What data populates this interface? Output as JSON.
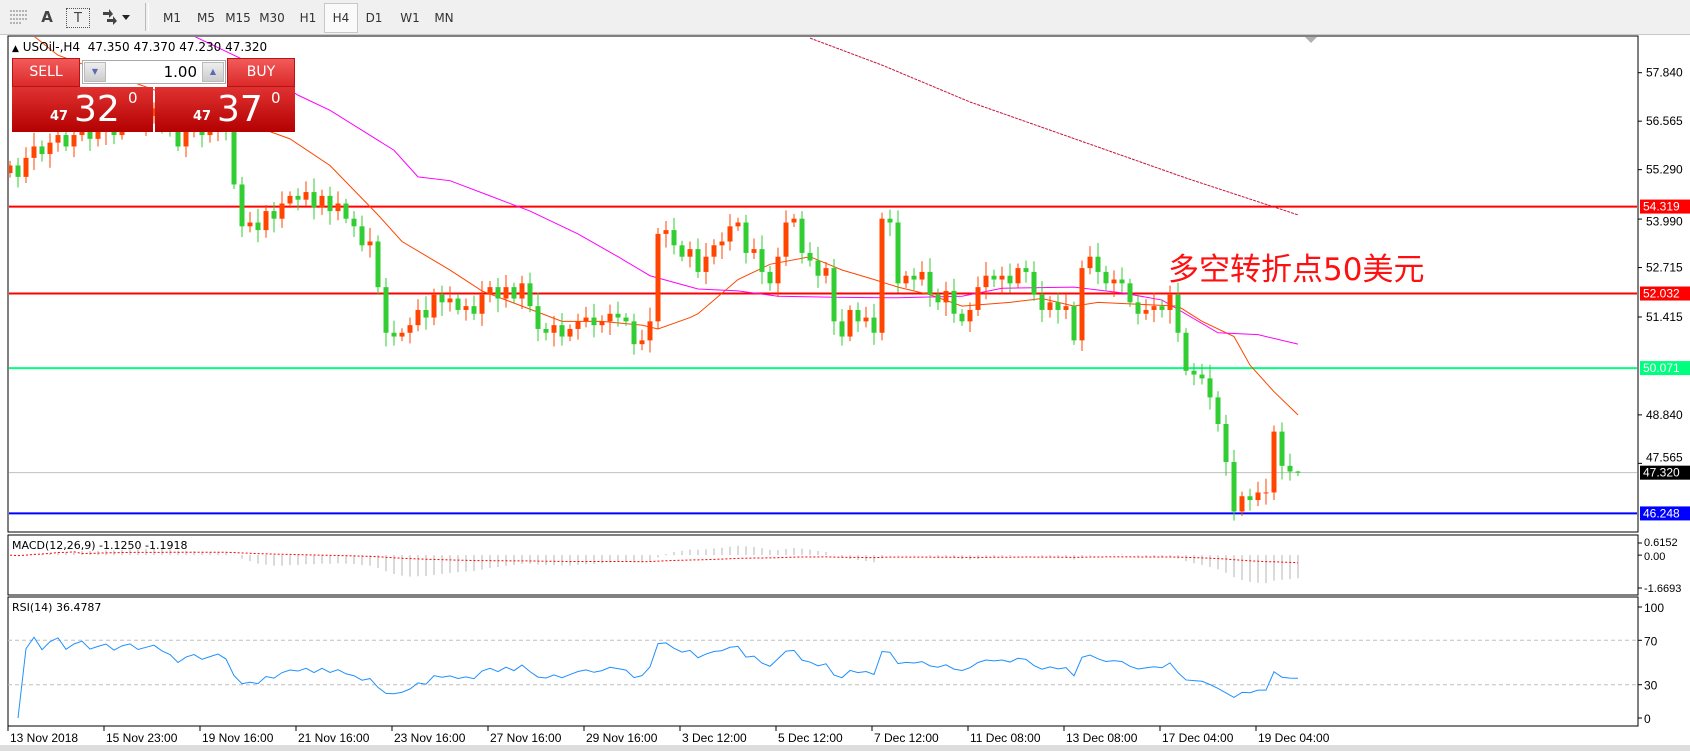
{
  "toolbar": {
    "icons": [
      "grid-lines-icon",
      "text-label-icon",
      "text-box-icon",
      "arrows-icon"
    ],
    "text_icon_glyph": "A",
    "textbox_icon_glyph": "T",
    "timeframes": [
      "M1",
      "M5",
      "M15",
      "M30",
      "H1",
      "H4",
      "D1",
      "W1",
      "MN"
    ],
    "active_timeframe": "H4"
  },
  "chart": {
    "symbol_line": "USOil-,H4  47.350 47.370 47.230 47.320",
    "trade_panel": {
      "sell_label": "SELL",
      "buy_label": "BUY",
      "lot_value": "1.00",
      "sell_price_small": "47",
      "sell_price_big": "32",
      "sell_price_sup": "0",
      "buy_price_small": "47",
      "buy_price_big": "37",
      "buy_price_sup": "0"
    },
    "annotation": "多空转折点50美元",
    "colors": {
      "bull": "#ff4500",
      "bear": "#32cd32",
      "ma_fast": "#ff4500",
      "ma_mid": "#ff00ff",
      "ma_slow": "#c8143c",
      "resistance": "#ff0000",
      "pivot": "#00ff7f",
      "support": "#0000ff",
      "bid": "#c0c0c0"
    }
  },
  "chart_data": [
    {
      "type": "candlestick",
      "title": "USOil-,H4",
      "yticks": [
        "57.840",
        "56.565",
        "55.290",
        "53.990",
        "52.715",
        "51.415",
        "48.840",
        "47.565"
      ],
      "xticks": [
        "13 Nov 2018",
        "15 Nov 23:00",
        "19 Nov 16:00",
        "21 Nov 16:00",
        "23 Nov 16:00",
        "27 Nov 16:00",
        "29 Nov 16:00",
        "3 Dec 12:00",
        "5 Dec 12:00",
        "7 Dec 12:00",
        "11 Dec 08:00",
        "13 Dec 08:00",
        "17 Dec 04:00",
        "19 Dec 04:00"
      ],
      "xtick_every_bars": 12,
      "close": [
        55.4,
        55.1,
        55.6,
        55.9,
        55.7,
        56.0,
        56.2,
        55.9,
        56.2,
        56.4,
        56.1,
        56.3,
        56.5,
        56.2,
        56.6,
        56.8,
        56.5,
        56.7,
        56.9,
        56.6,
        56.4,
        55.9,
        56.3,
        56.5,
        56.2,
        56.4,
        56.6,
        56.3,
        54.9,
        53.8,
        53.9,
        53.7,
        54.2,
        54.0,
        54.4,
        54.6,
        54.5,
        54.7,
        54.3,
        54.6,
        54.2,
        54.4,
        54.0,
        53.8,
        53.3,
        53.4,
        52.2,
        51.0,
        50.9,
        51.0,
        51.2,
        51.6,
        51.4,
        52.0,
        51.8,
        51.9,
        51.6,
        51.7,
        51.5,
        52.0,
        52.2,
        51.9,
        52.2,
        51.9,
        52.3,
        51.7,
        51.1,
        51.0,
        51.2,
        50.9,
        51.1,
        51.3,
        51.4,
        51.2,
        51.3,
        51.5,
        51.4,
        51.3,
        50.7,
        50.8,
        51.3,
        53.6,
        53.7,
        53.3,
        53.0,
        53.2,
        52.6,
        53.0,
        53.3,
        53.4,
        53.8,
        53.9,
        53.1,
        53.2,
        52.6,
        52.3,
        53.0,
        53.9,
        54.0,
        53.1,
        52.9,
        52.5,
        52.7,
        51.3,
        50.9,
        51.6,
        51.3,
        51.4,
        51.0,
        54.0,
        53.9,
        52.3,
        52.5,
        52.4,
        52.6,
        52.0,
        51.8,
        52.1,
        51.5,
        51.3,
        51.6,
        52.2,
        52.5,
        52.4,
        52.5,
        52.3,
        52.7,
        52.6,
        52.0,
        51.6,
        51.8,
        51.6,
        51.7,
        50.8,
        52.7,
        53.0,
        52.6,
        52.3,
        52.4,
        52.3,
        51.8,
        51.5,
        51.6,
        51.7,
        51.6,
        52.0,
        51.0,
        50.0,
        49.9,
        49.8,
        49.3,
        48.6,
        47.6,
        46.3,
        46.7,
        46.6,
        46.8,
        46.8,
        48.4,
        47.5,
        47.35,
        47.32
      ],
      "last": {
        "open": 47.35,
        "high": 47.37,
        "low": 47.23,
        "close": 47.32
      },
      "moving_averages": [
        {
          "color": "#ff4500",
          "points": [
            [
              3,
              58.8
            ],
            [
              6,
              58.3
            ],
            [
              35,
              56.1
            ],
            [
              40,
              55.4
            ],
            [
              46,
              54.1
            ],
            [
              49,
              53.4
            ],
            [
              55,
              52.65
            ],
            [
              59,
              52.1
            ],
            [
              64,
              51.7
            ],
            [
              69,
              51.3
            ],
            [
              74,
              51.3
            ],
            [
              79,
              51.2
            ],
            [
              81,
              51.1
            ],
            [
              85,
              51.4
            ],
            [
              86,
              51.5
            ],
            [
              91,
              52.4
            ],
            [
              95,
              52.8
            ],
            [
              100,
              53.0
            ],
            [
              104,
              52.65
            ],
            [
              108,
              52.4
            ],
            [
              111,
              52.2
            ],
            [
              115,
              52.0
            ],
            [
              119,
              51.7
            ],
            [
              125,
              51.8
            ],
            [
              129,
              51.9
            ],
            [
              133,
              51.7
            ],
            [
              136,
              51.8
            ],
            [
              141,
              51.75
            ],
            [
              146,
              51.7
            ],
            [
              149,
              51.3
            ],
            [
              153,
              50.9
            ],
            [
              155,
              50.15
            ],
            [
              158,
              49.45
            ],
            [
              161,
              48.84
            ]
          ]
        },
        {
          "color": "#ff00ff",
          "points": [
            [
              23,
              58.8
            ],
            [
              29,
              58.2
            ],
            [
              36,
              57.25
            ],
            [
              40,
              56.85
            ],
            [
              48,
              55.8
            ],
            [
              51,
              55.1
            ],
            [
              55,
              55.0
            ],
            [
              60,
              54.6
            ],
            [
              65,
              54.2
            ],
            [
              71,
              53.6
            ],
            [
              76,
              53.0
            ],
            [
              80,
              52.5
            ],
            [
              86,
              52.15
            ],
            [
              91,
              52.1
            ],
            [
              96,
              51.96
            ],
            [
              104,
              51.93
            ],
            [
              111,
              51.92
            ],
            [
              119,
              51.96
            ],
            [
              124,
              52.17
            ],
            [
              133,
              52.2
            ],
            [
              139,
              52.05
            ],
            [
              144,
              51.86
            ],
            [
              151,
              51.0
            ],
            [
              156,
              50.95
            ],
            [
              161,
              50.7
            ]
          ]
        },
        {
          "color": "#c8143c",
          "points": [
            [
              100,
              58.75
            ],
            [
              109,
              58.04
            ],
            [
              120,
              57.07
            ],
            [
              147,
              55.07
            ],
            [
              161,
              54.1
            ]
          ]
        }
      ],
      "horizontal_lines": [
        {
          "value": 54.319,
          "label": "54.319",
          "color": "#ff0000"
        },
        {
          "value": 52.032,
          "label": "52.032",
          "color": "#ff0000"
        },
        {
          "value": 50.071,
          "label": "50.071",
          "color": "#00ff7f"
        },
        {
          "value": 47.32,
          "label": "47.320",
          "color": "#000000",
          "line_color": "#c0c0c0"
        },
        {
          "value": 46.248,
          "label": "46.248",
          "color": "#0000ff"
        }
      ]
    },
    {
      "type": "bar",
      "title": "MACD(12,26,9) -1.1250 -1.1918",
      "yticks": [
        "0.6152",
        "0.00",
        "-1.6693"
      ],
      "ylim": [
        -1.6693,
        0.6152
      ],
      "params": [
        12,
        26,
        9
      ]
    },
    {
      "type": "line",
      "title": "RSI(14) 36.4787",
      "yticks": [
        "100",
        "70",
        "30",
        "0"
      ],
      "ylim": [
        0,
        100
      ],
      "levels": [
        70,
        30
      ],
      "period": 14
    }
  ]
}
